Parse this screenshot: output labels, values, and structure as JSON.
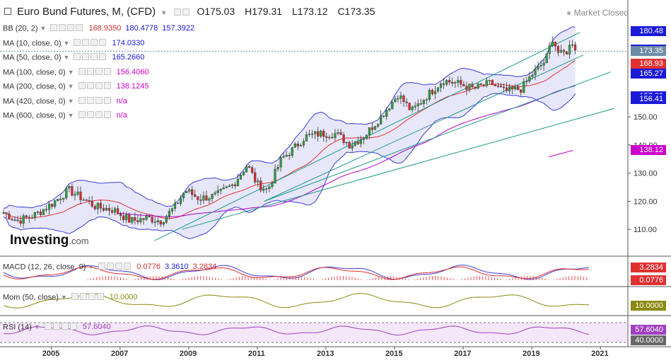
{
  "header": {
    "instrument": "Euro Bund Futures, M, (CFD)",
    "open": "O175.03",
    "high": "H179.31",
    "low": "L173.12",
    "close": "C173.35",
    "status": "Market Closed"
  },
  "indicators": [
    {
      "label": "BB (20, 2)",
      "values": [
        "168.9350",
        "180.4778",
        "157.3922"
      ],
      "colors": [
        "#d32f2f",
        "#1a1ad8",
        "#1a1ad8"
      ]
    },
    {
      "label": "MA (10, close, 0)",
      "values": [
        "174.0330"
      ],
      "colors": [
        "#1a1ad8"
      ]
    },
    {
      "label": "MA (50, close, 0)",
      "values": [
        "165.2660"
      ],
      "colors": [
        "#1a1ad8"
      ]
    },
    {
      "label": "MA (100, close, 0)",
      "values": [
        "156.4060"
      ],
      "colors": [
        "#cc00cc"
      ]
    },
    {
      "label": "MA (200, close, 0)",
      "values": [
        "138.1245"
      ],
      "colors": [
        "#cc00cc"
      ]
    },
    {
      "label": "MA (420, close, 0)",
      "values": [
        "n/a"
      ],
      "colors": [
        "#cc00cc"
      ]
    },
    {
      "label": "MA (600, close, 0)",
      "values": [
        "n/a"
      ],
      "colors": [
        "#cc00cc"
      ]
    }
  ],
  "logo": {
    "text": "Investing",
    "suffix": ".com"
  },
  "price_tags": [
    {
      "value": "180.48",
      "color": "#1a1ad8"
    },
    {
      "value": "174.03",
      "color": "#1a1ad8"
    },
    {
      "value": "173.35",
      "color": "#6e8ba6"
    },
    {
      "value": "168.93",
      "color": "#e03131"
    },
    {
      "value": "165.27",
      "color": "#1a1ad8"
    },
    {
      "value": "157.39",
      "color": "#1a1ad8"
    },
    {
      "value": "156.41",
      "color": "#1a1ad8"
    },
    {
      "value": "138.12",
      "color": "#cc00cc"
    }
  ],
  "macd": {
    "label": "MACD (12, 26, close, 9)",
    "values": [
      "0.0776",
      "3.3610",
      "3.2834"
    ],
    "colors": [
      "#d32f2f",
      "#1a1ad8",
      "#d32f2f"
    ],
    "tags": [
      {
        "value": "3.2834",
        "color": "#e03131"
      },
      {
        "value": "0.0776",
        "color": "#e03131"
      }
    ]
  },
  "mom": {
    "label": "Mom (50, close)",
    "value": "10.0000",
    "tag": "10.0000"
  },
  "rsi": {
    "label": "RSI (14)",
    "value": "57.6040",
    "tags": [
      "57.6040",
      "40.0000"
    ]
  },
  "chart_data": {
    "type": "candlestick",
    "title": "Euro Bund Futures, M, (CFD)",
    "y_ticks": [
      110,
      120,
      130,
      140,
      150
    ],
    "ylim": [
      103,
      184
    ],
    "x_ticks": [
      "2005",
      "2007",
      "2009",
      "2011",
      "2013",
      "2015",
      "2017",
      "2019",
      "2021"
    ],
    "x_range": [
      2003.5,
      2021.8
    ],
    "closes": [
      {
        "x": 2003.6,
        "y": 116
      },
      {
        "x": 2004.0,
        "y": 113
      },
      {
        "x": 2004.5,
        "y": 115
      },
      {
        "x": 2005.0,
        "y": 119
      },
      {
        "x": 2005.5,
        "y": 124
      },
      {
        "x": 2005.9,
        "y": 121
      },
      {
        "x": 2006.3,
        "y": 118
      },
      {
        "x": 2006.8,
        "y": 117
      },
      {
        "x": 2007.3,
        "y": 113
      },
      {
        "x": 2007.8,
        "y": 114
      },
      {
        "x": 2008.2,
        "y": 113
      },
      {
        "x": 2008.6,
        "y": 118
      },
      {
        "x": 2008.9,
        "y": 124
      },
      {
        "x": 2009.3,
        "y": 121
      },
      {
        "x": 2009.8,
        "y": 122
      },
      {
        "x": 2010.3,
        "y": 126
      },
      {
        "x": 2010.7,
        "y": 133
      },
      {
        "x": 2011.0,
        "y": 126
      },
      {
        "x": 2011.3,
        "y": 124
      },
      {
        "x": 2011.7,
        "y": 135
      },
      {
        "x": 2012.0,
        "y": 138
      },
      {
        "x": 2012.4,
        "y": 143
      },
      {
        "x": 2012.8,
        "y": 144
      },
      {
        "x": 2013.3,
        "y": 144
      },
      {
        "x": 2013.7,
        "y": 140
      },
      {
        "x": 2014.1,
        "y": 143
      },
      {
        "x": 2014.6,
        "y": 150
      },
      {
        "x": 2015.1,
        "y": 158
      },
      {
        "x": 2015.5,
        "y": 152
      },
      {
        "x": 2015.9,
        "y": 157
      },
      {
        "x": 2016.4,
        "y": 163
      },
      {
        "x": 2016.8,
        "y": 162
      },
      {
        "x": 2017.3,
        "y": 160
      },
      {
        "x": 2017.8,
        "y": 162
      },
      {
        "x": 2018.2,
        "y": 159
      },
      {
        "x": 2018.7,
        "y": 160
      },
      {
        "x": 2019.0,
        "y": 165
      },
      {
        "x": 2019.4,
        "y": 170
      },
      {
        "x": 2019.6,
        "y": 178
      },
      {
        "x": 2019.8,
        "y": 172
      },
      {
        "x": 2020.0,
        "y": 173
      },
      {
        "x": 2020.2,
        "y": 177
      },
      {
        "x": 2020.3,
        "y": 173.35
      }
    ],
    "trendlines": [
      {
        "from": {
          "x": 2008.0,
          "y": 106
        },
        "to": {
          "x": 2020.4,
          "y": 180
        }
      },
      {
        "from": {
          "x": 2011.2,
          "y": 120
        },
        "to": {
          "x": 2020.5,
          "y": 172
        }
      },
      {
        "from": {
          "x": 2011.2,
          "y": 120
        },
        "to": {
          "x": 2021.3,
          "y": 166
        }
      },
      {
        "from": {
          "x": 2008.8,
          "y": 110
        },
        "to": {
          "x": 2021.4,
          "y": 153
        }
      }
    ],
    "ma200_segment": [
      {
        "x": 2019.5,
        "y": 135.8
      },
      {
        "x": 2020.2,
        "y": 138.1
      }
    ]
  }
}
